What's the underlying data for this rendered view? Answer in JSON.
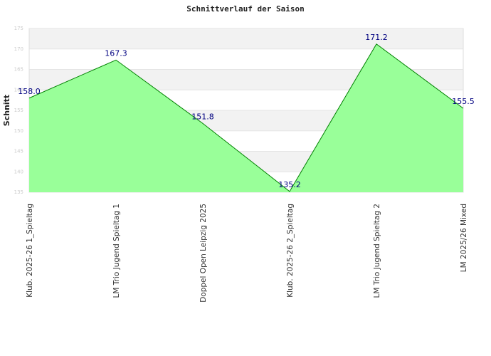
{
  "chart_data": {
    "type": "area",
    "title": "Schnittverlauf der Saison",
    "y_label": "Schnitt",
    "categories": [
      "Klub. 2025-26  1_Spieltag",
      "LM Trio Jugend Spieltag 1",
      "Doppel Open Leipzig 2025",
      "Klub. 2025-26  2_Spieltag",
      "LM Trio Jugend Spieltag 2",
      "LM 2025/26 Mixed"
    ],
    "series": [
      {
        "name": "Schnitt",
        "color": "#008000",
        "fill": "#99ff99",
        "values": [
          158.0,
          167.3,
          151.8,
          135.2,
          171.2,
          155.5
        ],
        "value_labels": [
          "158.0",
          "167.3",
          "151.8",
          "135.2",
          "171.2",
          "155.5"
        ]
      }
    ],
    "ylim": [
      135,
      175
    ],
    "yticks": [
      135,
      140,
      145,
      150,
      155,
      160,
      165,
      170,
      175
    ],
    "grid": true
  }
}
